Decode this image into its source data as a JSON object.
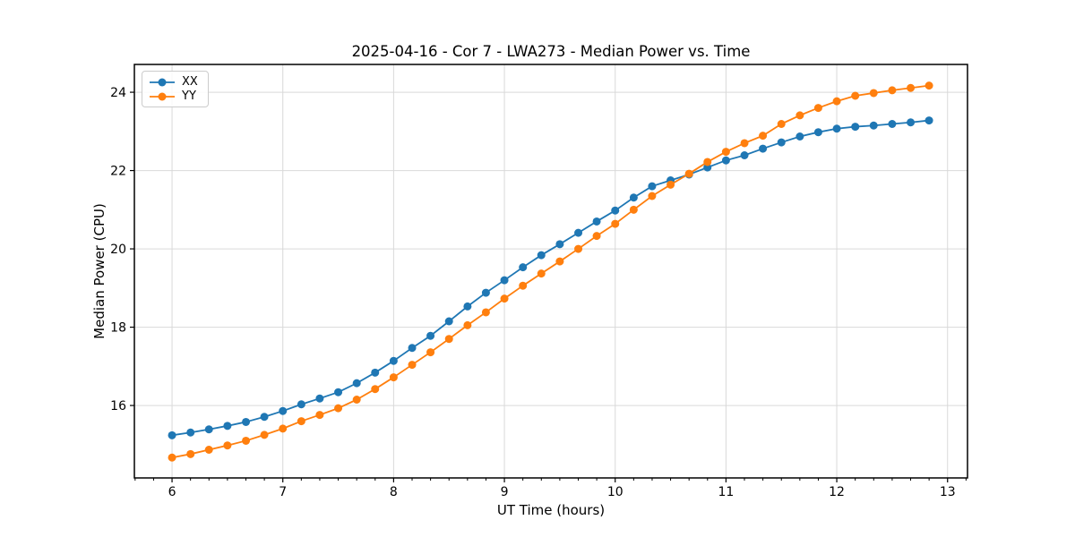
{
  "chart_data": {
    "type": "line",
    "title": "2025-04-16 - Cor 7 - LWA273 - Median Power vs. Time",
    "xlabel": "UT Time (hours)",
    "ylabel": "Median Power (CPU)",
    "xlim": [
      5.66,
      13.18
    ],
    "ylim": [
      14.15,
      24.71
    ],
    "xticks": [
      6,
      7,
      8,
      9,
      10,
      11,
      12,
      13
    ],
    "yticks": [
      16,
      18,
      20,
      22,
      24
    ],
    "x_minor_step": 0.166667,
    "grid": true,
    "grid_color": "#d9d9d9",
    "legend_position": "upper-left",
    "x": [
      6.0,
      6.167,
      6.333,
      6.5,
      6.667,
      6.833,
      7.0,
      7.167,
      7.333,
      7.5,
      7.667,
      7.833,
      8.0,
      8.167,
      8.333,
      8.5,
      8.667,
      8.833,
      9.0,
      9.167,
      9.333,
      9.5,
      9.667,
      9.833,
      10.0,
      10.167,
      10.333,
      10.5,
      10.667,
      10.833,
      11.0,
      11.167,
      11.333,
      11.5,
      11.667,
      11.833,
      12.0,
      12.167,
      12.333,
      12.5,
      12.667,
      12.833
    ],
    "series": [
      {
        "name": "XX",
        "color": "#1f77b4",
        "values": [
          15.24,
          15.31,
          15.39,
          15.48,
          15.58,
          15.71,
          15.86,
          16.03,
          16.18,
          16.34,
          16.57,
          16.84,
          17.14,
          17.47,
          17.78,
          18.15,
          18.53,
          18.88,
          19.2,
          19.53,
          19.84,
          20.12,
          20.41,
          20.7,
          20.98,
          21.31,
          21.6,
          21.75,
          21.9,
          22.08,
          22.26,
          22.39,
          22.56,
          22.72,
          22.87,
          22.98,
          23.07,
          23.12,
          23.15,
          23.19,
          23.23,
          23.28
        ]
      },
      {
        "name": "YY",
        "color": "#ff7f0e",
        "values": [
          14.67,
          14.76,
          14.87,
          14.98,
          15.1,
          15.25,
          15.41,
          15.6,
          15.76,
          15.93,
          16.15,
          16.42,
          16.72,
          17.04,
          17.36,
          17.7,
          18.05,
          18.38,
          18.73,
          19.06,
          19.37,
          19.68,
          20.0,
          20.33,
          20.64,
          21.0,
          21.35,
          21.64,
          21.92,
          22.22,
          22.48,
          22.7,
          22.89,
          23.19,
          23.41,
          23.6,
          23.77,
          23.91,
          23.98,
          24.05,
          24.11,
          24.17
        ]
      }
    ]
  }
}
